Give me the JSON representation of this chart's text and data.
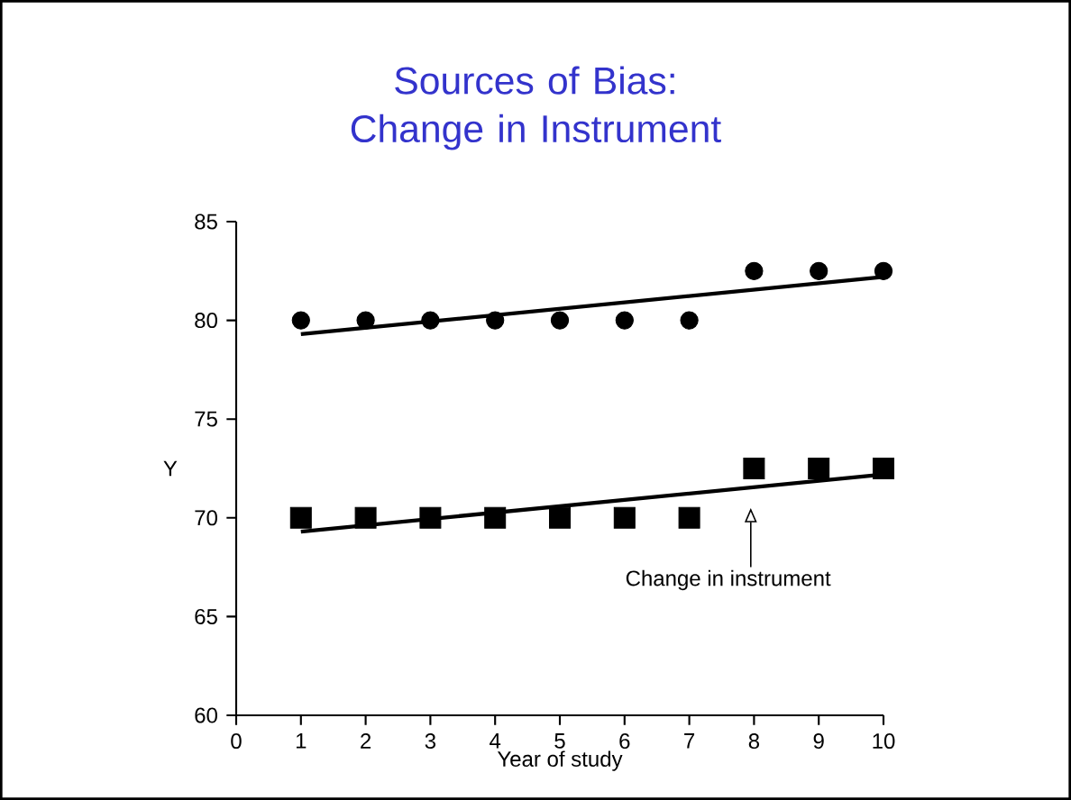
{
  "chart_data": {
    "type": "scatter",
    "title": "Sources of Bias: Change in Instrument",
    "xlabel": "Year of study",
    "ylabel": "Y",
    "xlim": [
      0,
      10
    ],
    "xticks": [
      0,
      1,
      2,
      3,
      4,
      5,
      6,
      7,
      8,
      9,
      10
    ],
    "ylim": [
      60,
      85
    ],
    "yticks": [
      60,
      65,
      70,
      75,
      80,
      85
    ],
    "series": [
      {
        "marker": "circle",
        "color": "#000000",
        "x": [
          1,
          2,
          3,
          4,
          5,
          6,
          7,
          8,
          9,
          10
        ],
        "values": [
          80,
          80,
          80,
          80,
          80,
          80,
          80,
          82.5,
          82.5,
          82.5
        ]
      },
      {
        "marker": "square",
        "color": "#000000",
        "x": [
          1,
          2,
          3,
          4,
          5,
          6,
          7,
          8,
          9,
          10
        ],
        "values": [
          70,
          70,
          70,
          70,
          70,
          70,
          70,
          72.5,
          72.5,
          72.5
        ]
      },
      {
        "type": "line",
        "marker": "none",
        "line_style": "solid",
        "color": "#000000",
        "x": [
          1,
          10
        ],
        "values": [
          79.3,
          82.2
        ]
      },
      {
        "type": "line",
        "marker": "none",
        "line_style": "solid",
        "color": "#000000",
        "x": [
          1,
          10
        ],
        "values": [
          69.3,
          72.2
        ]
      }
    ],
    "annotations": [
      "Change in instrument"
    ]
  }
}
